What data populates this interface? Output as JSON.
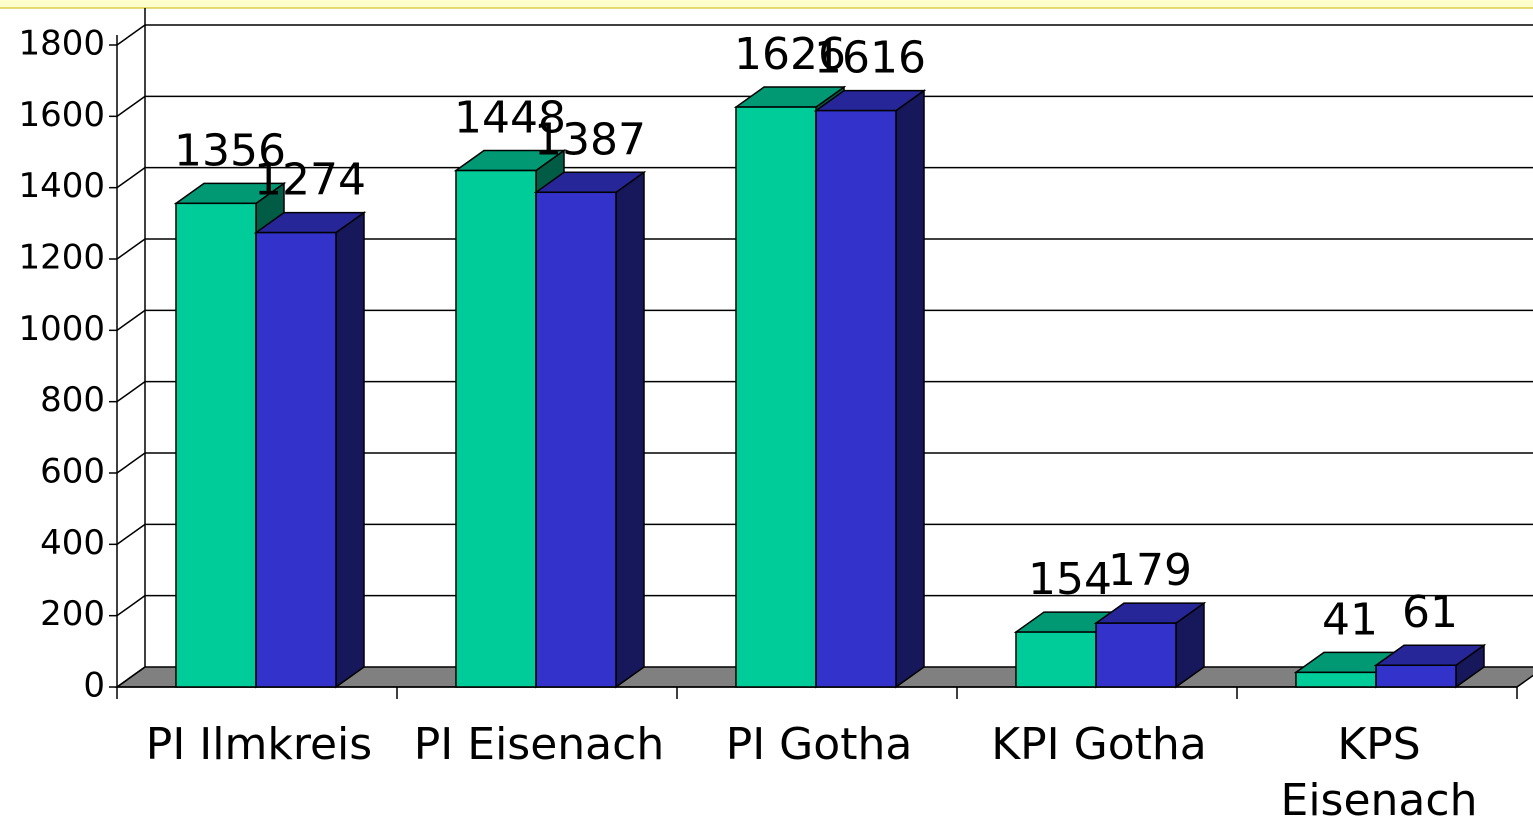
{
  "chart_data": {
    "type": "bar3d",
    "categories": [
      "PI Ilmkreis",
      "PI Eisenach",
      "PI Gotha",
      "KPI Gotha",
      "KPS Eisenach"
    ],
    "series": [
      {
        "color": "#00cc99",
        "values": [
          1356,
          1448,
          1626,
          154,
          41
        ]
      },
      {
        "color": "#3333cc",
        "values": [
          1274,
          1387,
          1616,
          179,
          61
        ]
      }
    ],
    "ylim": [
      0,
      1800
    ],
    "yticks": [
      0,
      200,
      400,
      600,
      800,
      1000,
      1200,
      1400,
      1600,
      1800
    ],
    "grid": true
  }
}
